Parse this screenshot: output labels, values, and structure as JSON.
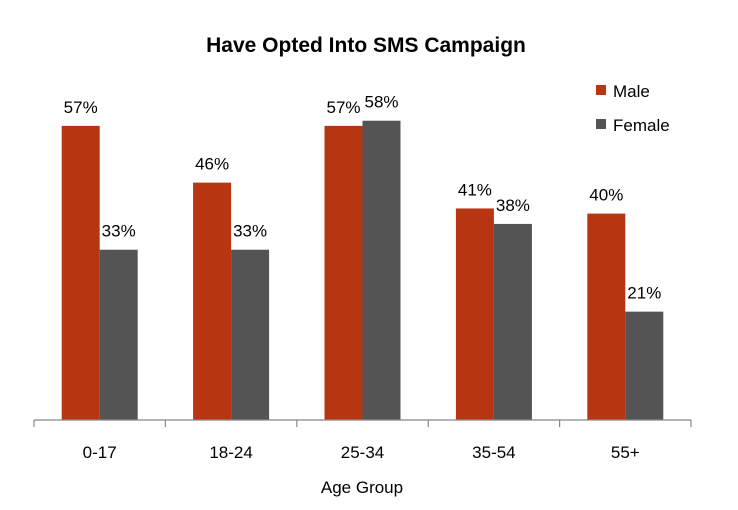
{
  "chart_data": {
    "type": "bar",
    "title": "Have Opted Into SMS Campaign",
    "xlabel": "Age Group",
    "ylabel": "",
    "categories": [
      "0-17",
      "18-24",
      "25-34",
      "35-54",
      "55+"
    ],
    "series": [
      {
        "name": "Male",
        "color": "#b83512",
        "values": [
          57,
          46,
          57,
          41,
          40
        ],
        "labels": [
          "57%",
          "46%",
          "57%",
          "41%",
          "40%"
        ]
      },
      {
        "name": "Female",
        "color": "#545454",
        "values": [
          33,
          33,
          58,
          38,
          21
        ],
        "labels": [
          "33%",
          "33%",
          "58%",
          "38%",
          "21%"
        ]
      }
    ],
    "ylim": [
      0,
      70
    ],
    "grid": false,
    "legend": "top-right"
  }
}
